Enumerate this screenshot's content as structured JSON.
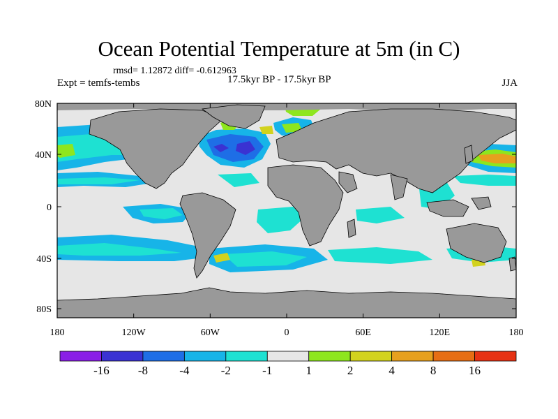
{
  "title": "Ocean Potential Temperature at 5m (in C)",
  "stats": "rmsd= 1.12872 diff= -0.612963",
  "left_label": "Expt = temfs-tembs",
  "center_label": "17.5kyr BP - 17.5kyr BP",
  "right_label": "JJA",
  "colors": {
    "ocean_neutral": "#e6e6e6",
    "land": "#999999",
    "frame": "#000000",
    "contour_bins": [
      "#8a1ee6",
      "#3a32d2",
      "#1e6ee6",
      "#17b4e8",
      "#1ee1d2",
      "#e6e6e6",
      "#8ee61e",
      "#d2d21e",
      "#e6a01e",
      "#e66e14",
      "#e63214"
    ]
  },
  "lat_ticks": [
    "80N",
    "40N",
    "0",
    "40S",
    "80S"
  ],
  "lon_ticks": [
    "180",
    "120W",
    "60W",
    "0",
    "60E",
    "120E",
    "180"
  ],
  "colorbar_labels": [
    "-16",
    "-8",
    "-4",
    "-2",
    "-1",
    "1",
    "2",
    "4",
    "8",
    "16"
  ]
}
